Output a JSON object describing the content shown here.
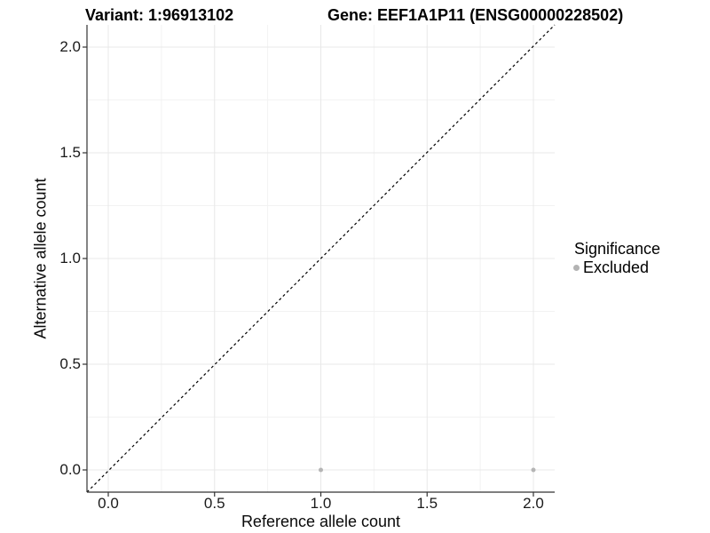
{
  "titles": {
    "variant": "Variant: 1:96913102",
    "gene": "Gene: EEF1A1P11 (ENSG00000228502)"
  },
  "chart_data": {
    "type": "scatter",
    "xlabel": "Reference allele count",
    "ylabel": "Alternative allele count",
    "xlim": [
      -0.1,
      2.1
    ],
    "ylim": [
      -0.1,
      2.1
    ],
    "x_tick_values": [
      0,
      0.5,
      1,
      1.5,
      2
    ],
    "x_tick_labels": [
      "0.0",
      "0.5",
      "1.0",
      "1.5",
      "2.0"
    ],
    "y_tick_values": [
      0,
      0.5,
      1,
      1.5,
      2
    ],
    "y_tick_labels": [
      "0.0",
      "0.5",
      "1.0",
      "1.5",
      "2.0"
    ],
    "minor_tick_values": [
      0.25,
      0.75,
      1.25,
      1.75
    ],
    "grid": true,
    "points": [
      {
        "x": 1,
        "y": 0,
        "series": "Excluded"
      },
      {
        "x": 2,
        "y": 0,
        "series": "Excluded"
      }
    ],
    "reference_line": {
      "slope": 1,
      "intercept": 0,
      "style": "dashed",
      "color": "#000000"
    },
    "legend": {
      "title": "Significance",
      "position": "right",
      "entries": [
        {
          "label": "Excluded",
          "color": "#b3b3b3"
        }
      ]
    }
  },
  "colors": {
    "background": "#ffffff",
    "grid_major": "#e8e8e8",
    "grid_minor": "#f2f2f2",
    "axis_line": "#333333",
    "tick_mark": "#333333",
    "tick_label": "#1a1a1a",
    "point": "#b5b5b5"
  }
}
